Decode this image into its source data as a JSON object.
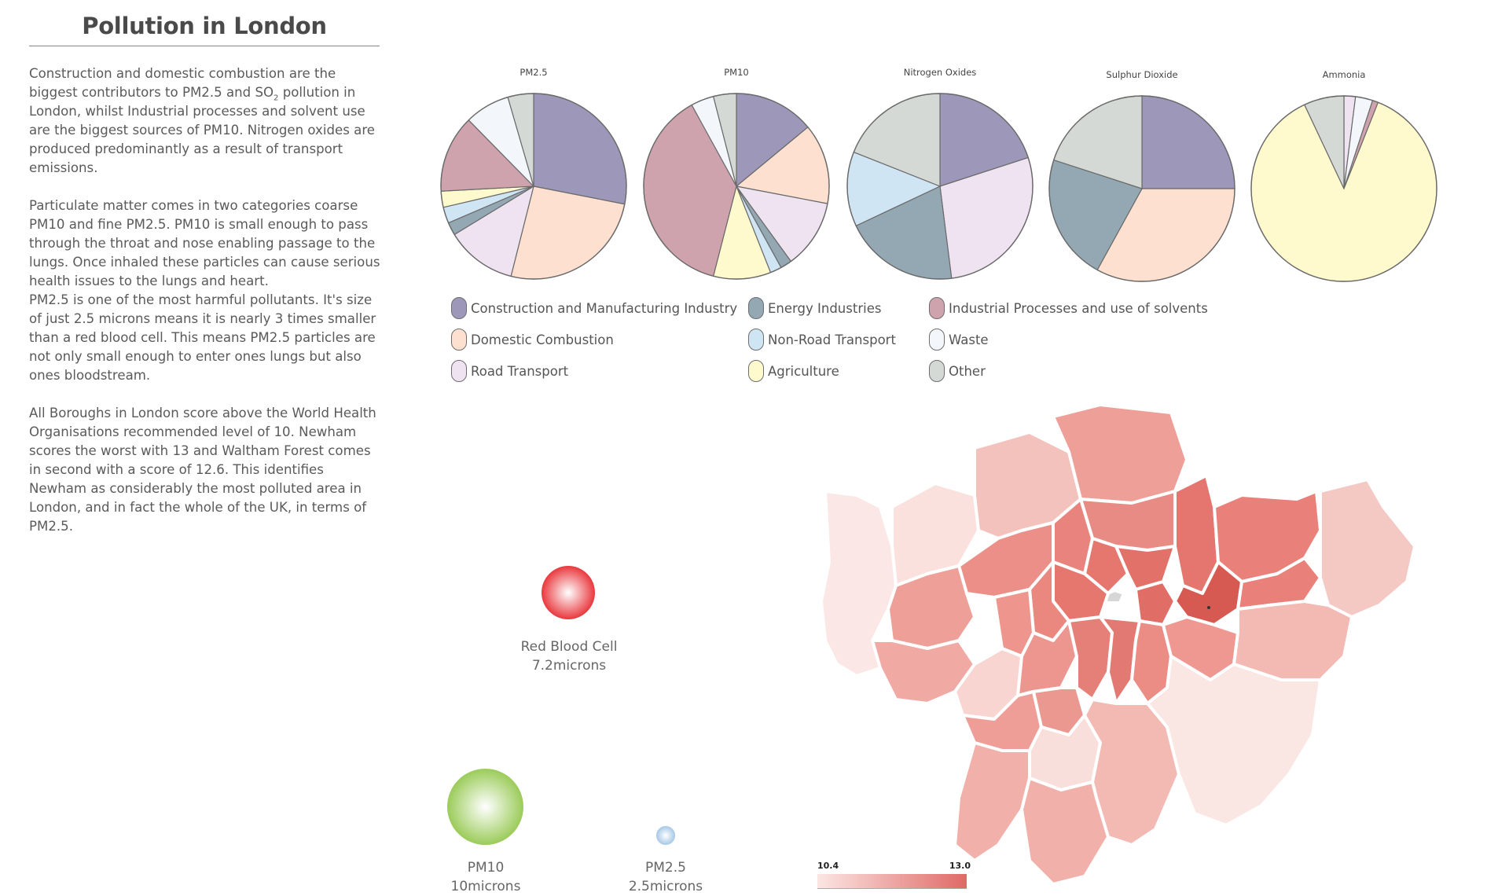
{
  "title": "Pollution in London",
  "body": {
    "p1_a": "Construction and domestic combustion are the biggest contributors to PM2.5 and SO",
    "p1_sub": "2",
    "p1_b": " pollution in London, whilst Industrial processes and solvent use are the biggest sources of PM10. Nitrogen oxides are produced predominantly as a result of transport emissions.",
    "p2": "Particulate matter comes in two categories coarse PM10 and fine PM2.5. PM10 is small enough to pass through the throat and nose enabling passage to the lungs. Once inhaled these particles can cause serious health issues to the lungs and heart.",
    "p3": "PM2.5 is one of the most harmful pollutants. It's size of just 2.5 microns means it is nearly 3 times smaller than a red blood cell. This means PM2.5 particles are not only small enough to enter ones lungs but also ones bloodstream.",
    "p4": "All Boroughs in London score above the World Health Organisations recommended level of 10. Newham scores the worst with 13 and Waltham Forest comes in second with a score of 12.6. This identifies Newham as considerably the most polluted area in London, and in fact the whole of the UK, in terms of PM2.5."
  },
  "colors": {
    "Construction and Manufacturing Industry": "#9d97b9",
    "Domestic Combustion": "#fde0cf",
    "Road Transport": "#f0e3f1",
    "Energy Industries": "#94a8b4",
    "Non-Road Transport": "#cfe5f4",
    "Agriculture": "#fffacd",
    "Industrial Processes and use of solvents": "#cfa3ad",
    "Waste": "#f3f7fb",
    "Other": "#d5d9d6"
  },
  "legend": [
    {
      "label": "Construction and Manufacturing Industry"
    },
    {
      "label": "Domestic Combustion"
    },
    {
      "label": "Road Transport"
    },
    {
      "label": "Energy Industries"
    },
    {
      "label": "Non-Road Transport"
    },
    {
      "label": "Agriculture"
    },
    {
      "label": "Industrial Processes and use of solvents"
    },
    {
      "label": "Waste"
    },
    {
      "label": "Other"
    }
  ],
  "chart_data": [
    {
      "type": "pie",
      "title": "PM2.5",
      "slices": [
        {
          "label": "Construction and Manufacturing Industry",
          "value": 25
        },
        {
          "label": "Domestic Combustion",
          "value": 23
        },
        {
          "label": "Road Transport",
          "value": 11
        },
        {
          "label": "Energy Industries",
          "value": 2
        },
        {
          "label": "Non-Road Transport",
          "value": 2.5
        },
        {
          "label": "Agriculture",
          "value": 2.5
        },
        {
          "label": "Industrial Processes and use of solvents",
          "value": 12
        },
        {
          "label": "Waste",
          "value": 7
        },
        {
          "label": "Other",
          "value": 4
        }
      ]
    },
    {
      "type": "pie",
      "title": "PM10",
      "slices": [
        {
          "label": "Construction and Manufacturing Industry",
          "value": 14
        },
        {
          "label": "Domestic Combustion",
          "value": 14
        },
        {
          "label": "Road Transport",
          "value": 12
        },
        {
          "label": "Energy Industries",
          "value": 2
        },
        {
          "label": "Non-Road Transport",
          "value": 2
        },
        {
          "label": "Agriculture",
          "value": 10
        },
        {
          "label": "Industrial Processes and use of solvents",
          "value": 38
        },
        {
          "label": "Waste",
          "value": 4
        },
        {
          "label": "Other",
          "value": 4
        }
      ]
    },
    {
      "type": "pie",
      "title": "Nitrogen Oxides",
      "slices": [
        {
          "label": "Construction and Manufacturing Industry",
          "value": 20
        },
        {
          "label": "Road Transport",
          "value": 28
        },
        {
          "label": "Energy Industries",
          "value": 20
        },
        {
          "label": "Non-Road Transport",
          "value": 13
        },
        {
          "label": "Other",
          "value": 19
        }
      ]
    },
    {
      "type": "pie",
      "title": "Sulphur Dioxide",
      "slices": [
        {
          "label": "Construction and Manufacturing Industry",
          "value": 25
        },
        {
          "label": "Domestic Combustion",
          "value": 33
        },
        {
          "label": "Energy Industries",
          "value": 22
        },
        {
          "label": "Other",
          "value": 20
        }
      ]
    },
    {
      "type": "pie",
      "title": "Ammonia",
      "slices": [
        {
          "label": "Road Transport",
          "value": 2
        },
        {
          "label": "Waste",
          "value": 3
        },
        {
          "label": "Industrial Processes and use of solvents",
          "value": 1
        },
        {
          "label": "Agriculture",
          "value": 87
        },
        {
          "label": "Other",
          "value": 7
        }
      ]
    }
  ],
  "particles": [
    {
      "name": "Red Blood Cell",
      "size": "7.2microns",
      "color": "#e93a3f"
    },
    {
      "name": "PM10",
      "size": "10microns",
      "color": "#9ccc5b"
    },
    {
      "name": "PM2.5",
      "size": "2.5microns",
      "color": "#a7c8e6"
    }
  ],
  "map": {
    "scale_min": "10.4",
    "scale_max": "13.0",
    "color_min": "#fbe6e4",
    "color_max": "#d95a52"
  }
}
